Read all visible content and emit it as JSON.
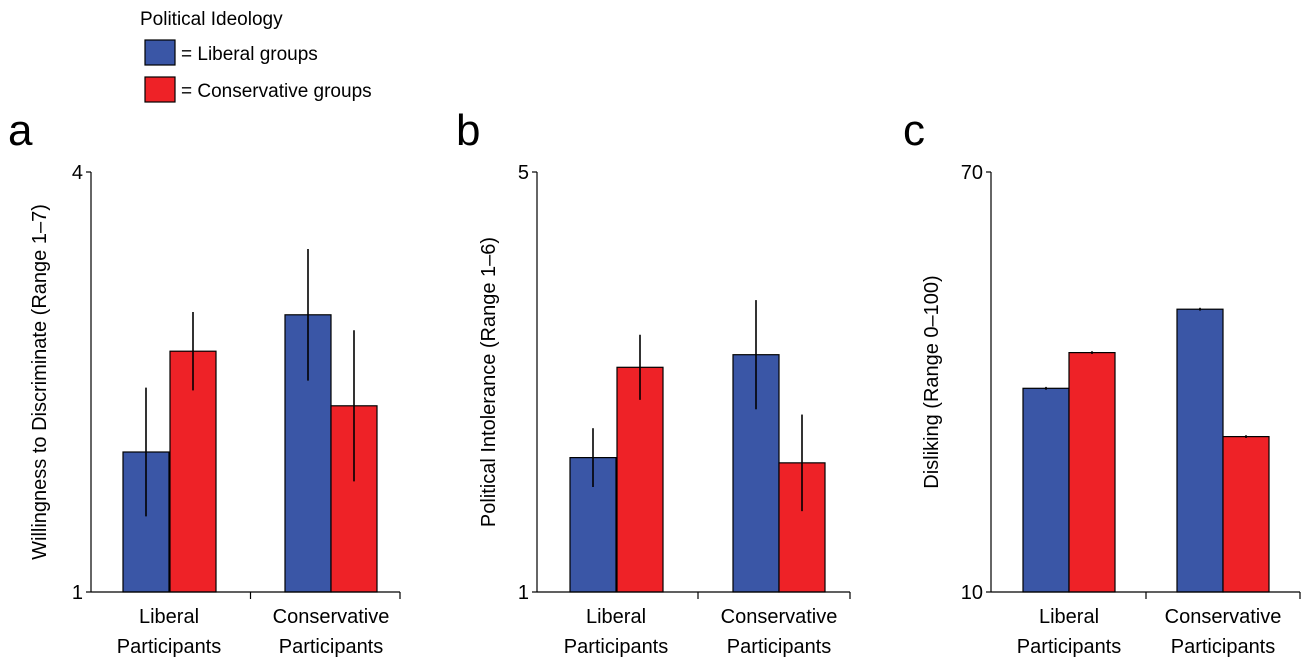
{
  "legend": {
    "title": "Political Ideology",
    "items": [
      {
        "label": "= Liberal groups",
        "color": "#3a56a6"
      },
      {
        "label": "= Conservative groups",
        "color": "#ee2227"
      }
    ]
  },
  "colors": {
    "liberal": "#3a56a6",
    "conservative": "#ee2227",
    "axis": "#000000"
  },
  "chart_data": [
    {
      "type": "bar",
      "panel_label": "a",
      "ylabel": "Willingness to Discriminate (Range 1–7)",
      "ylim": [
        1,
        4
      ],
      "yticks": [
        "1",
        "4"
      ],
      "categories": [
        [
          "Liberal",
          "Participants"
        ],
        [
          "Conservative",
          "Participants"
        ]
      ],
      "series": [
        {
          "key": "liberal",
          "values": [
            2.0,
            2.98
          ],
          "errors": [
            0.46,
            0.47
          ]
        },
        {
          "key": "conservative",
          "values": [
            2.72,
            2.33
          ],
          "errors": [
            0.28,
            0.54
          ]
        }
      ]
    },
    {
      "type": "bar",
      "panel_label": "b",
      "ylabel": "Political Intolerance (Range 1–6)",
      "ylim": [
        1,
        5
      ],
      "yticks": [
        "1",
        "5"
      ],
      "categories": [
        [
          "Liberal",
          "Participants"
        ],
        [
          "Conservative",
          "Participants"
        ]
      ],
      "series": [
        {
          "key": "liberal",
          "values": [
            2.28,
            3.26
          ],
          "errors": [
            0.28,
            0.52
          ]
        },
        {
          "key": "conservative",
          "values": [
            3.14,
            2.23
          ],
          "errors": [
            0.31,
            0.46
          ]
        }
      ]
    },
    {
      "type": "bar",
      "panel_label": "c",
      "ylabel": "Disliking (Range 0–100)",
      "ylim": [
        10,
        70
      ],
      "yticks": [
        "10",
        "70"
      ],
      "categories": [
        [
          "Liberal",
          "Participants"
        ],
        [
          "Conservative",
          "Participants"
        ]
      ],
      "series": [
        {
          "key": "liberal",
          "values": [
            39.1,
            50.4
          ],
          "errors": [
            0.2,
            0.2
          ]
        },
        {
          "key": "conservative",
          "values": [
            44.2,
            32.2
          ],
          "errors": [
            0.2,
            0.2
          ]
        }
      ]
    }
  ]
}
